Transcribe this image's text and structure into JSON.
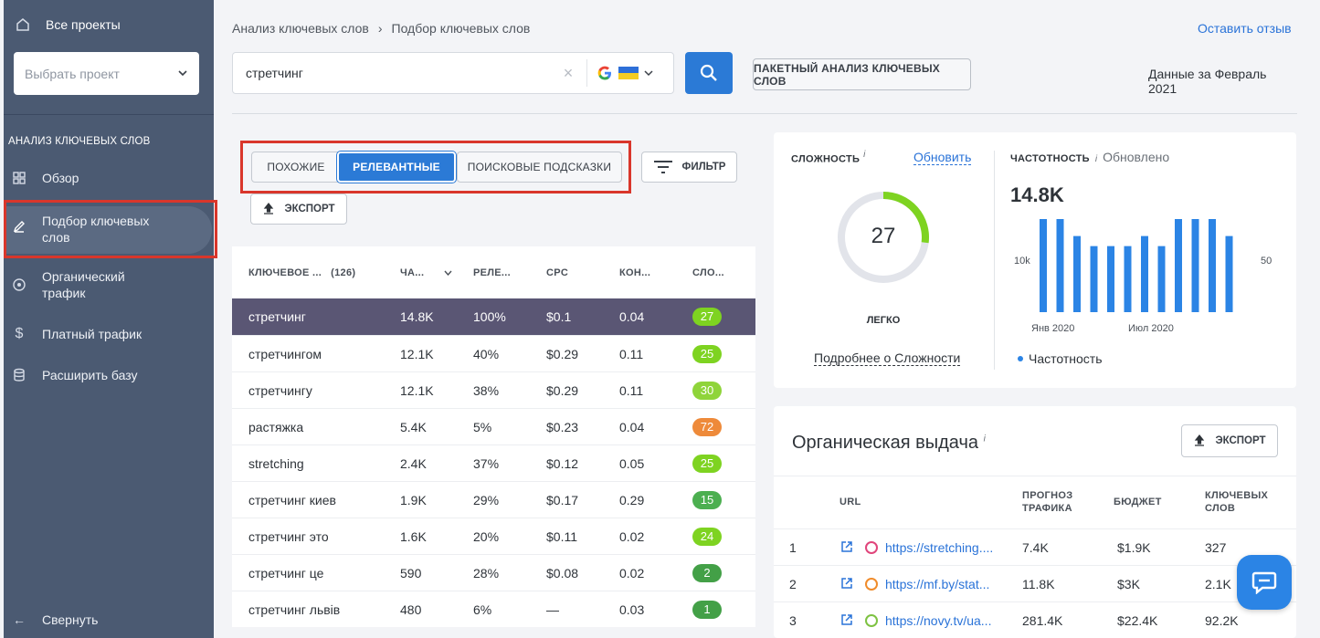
{
  "sidebar": {
    "all_projects": "Все проекты",
    "project_select_placeholder": "Выбрать проект",
    "section_title": "АНАЛИЗ КЛЮЧЕВЫХ СЛОВ",
    "items": [
      {
        "label": "Обзор",
        "icon": "grid-icon"
      },
      {
        "label": "Подбор ключевых слов",
        "icon": "pencil-icon",
        "active": true
      },
      {
        "label": "Органический трафик",
        "icon": "target-icon"
      },
      {
        "label": "Платный трафик",
        "icon": "dollar-icon"
      },
      {
        "label": "Расширить базу",
        "icon": "database-icon"
      }
    ],
    "collapse_label": "Свернуть"
  },
  "header": {
    "breadcrumb_1": "Анализ ключевых слов",
    "breadcrumb_sep": "›",
    "breadcrumb_2": "Подбор ключевых слов",
    "feedback_link": "Оставить отзыв",
    "search_value": "стретчинг",
    "batch_button": "ПАКЕТНЫЙ АНАЛИЗ КЛЮЧЕВЫХ СЛОВ",
    "data_for": "Данные за Февраль 2021"
  },
  "tabs": {
    "similar": "ПОХОЖИЕ",
    "relevant": "РЕЛЕВАНТНЫЕ",
    "suggestions": "ПОИСКОВЫЕ ПОДСКАЗКИ",
    "filter": "ФИЛЬТР",
    "export": "ЭКСПОРТ"
  },
  "keywords_table": {
    "headers": {
      "keyword": "КЛЮЧЕВОЕ ...",
      "count": "(126)",
      "freq": "ЧА...",
      "relevance": "РЕЛЕ...",
      "cpc": "CPC",
      "competition": "КОН...",
      "difficulty": "СЛО..."
    },
    "rows": [
      {
        "keyword": "стретчинг",
        "freq": "14.8K",
        "rel": "100%",
        "cpc": "$0.1",
        "comp": "0.04",
        "diff": "27",
        "color": "#7ed321"
      },
      {
        "keyword": "стретчингом",
        "freq": "12.1K",
        "rel": "40%",
        "cpc": "$0.29",
        "comp": "0.11",
        "diff": "25",
        "color": "#7ed321"
      },
      {
        "keyword": "стретчингу",
        "freq": "12.1K",
        "rel": "38%",
        "cpc": "$0.29",
        "comp": "0.11",
        "diff": "30",
        "color": "#8fd43a"
      },
      {
        "keyword": "растяжка",
        "freq": "5.4K",
        "rel": "5%",
        "cpc": "$0.23",
        "comp": "0.04",
        "diff": "72",
        "color": "#ee8a3a"
      },
      {
        "keyword": "stretching",
        "freq": "2.4K",
        "rel": "37%",
        "cpc": "$0.12",
        "comp": "0.05",
        "diff": "25",
        "color": "#7ed321"
      },
      {
        "keyword": "стретчинг киев",
        "freq": "1.9K",
        "rel": "29%",
        "cpc": "$0.17",
        "comp": "0.29",
        "diff": "15",
        "color": "#4caf50"
      },
      {
        "keyword": "стретчинг это",
        "freq": "1.6K",
        "rel": "20%",
        "cpc": "$0.11",
        "comp": "0.02",
        "diff": "24",
        "color": "#7ed321"
      },
      {
        "keyword": "стретчинг це",
        "freq": "590",
        "rel": "28%",
        "cpc": "$0.08",
        "comp": "0.02",
        "diff": "2",
        "color": "#43a047"
      },
      {
        "keyword": "стретчинг львів",
        "freq": "480",
        "rel": "6%",
        "cpc": "—",
        "comp": "0.03",
        "diff": "1",
        "color": "#43a047"
      }
    ]
  },
  "difficulty_card": {
    "title": "СЛОЖНОСТЬ",
    "sup": "i",
    "update_link": "Обновить",
    "value": "27",
    "fraction": 0.27,
    "level": "ЛЕГКО",
    "more_link": "Подробнее о Сложности"
  },
  "frequency_card": {
    "title": "ЧАСТОТНОСТЬ",
    "sup": "i",
    "updated": "Обновлено",
    "value": "14.8K",
    "legend": "Частотность"
  },
  "chart_data": {
    "type": "bar",
    "y_tick_left": "10k",
    "y_tick_right": "50",
    "x_ticks": [
      "Янв 2020",
      "Июл 2020"
    ],
    "values": [
      14.8,
      14.8,
      12.1,
      10.5,
      10.5,
      10.5,
      12.1,
      10.5,
      14.8,
      14.8,
      14.8,
      12.1
    ],
    "series": [
      {
        "name": "Частотность",
        "color": "#2b84e5"
      }
    ]
  },
  "organic": {
    "title": "Органическая выдача",
    "sup": "i",
    "export": "ЭКСПОРТ",
    "headers": {
      "url": "URL",
      "traffic": "ПРОГНОЗ ТРАФИКА",
      "budget": "БЮДЖЕТ",
      "keywords": "КЛЮЧЕВЫХ СЛОВ"
    },
    "rows": [
      {
        "n": "1",
        "url": "https://stretching....",
        "traffic": "7.4K",
        "budget": "$1.9K",
        "kw": "327"
      },
      {
        "n": "2",
        "url": "https://mf.by/stat...",
        "traffic": "11.8K",
        "budget": "$3K",
        "kw": "2.1K"
      },
      {
        "n": "3",
        "url": "https://novy.tv/ua...",
        "traffic": "281.4K",
        "budget": "$22.4K",
        "kw": "92.2K"
      }
    ]
  }
}
